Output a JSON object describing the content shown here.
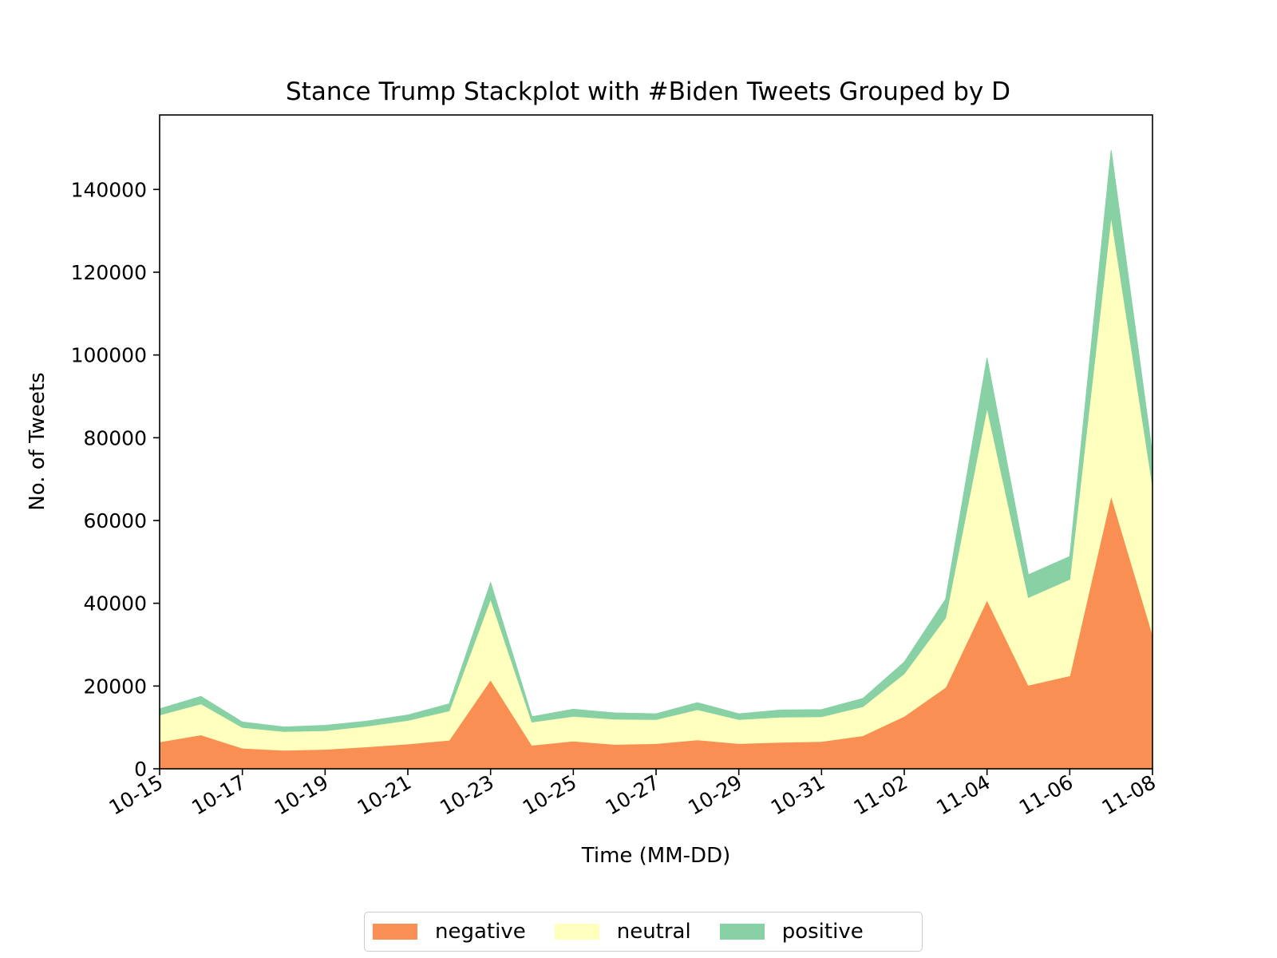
{
  "chart_data": {
    "type": "area",
    "stacked": true,
    "title": "Stance Trump Stackplot with #Biden Tweets Grouped by D",
    "xlabel": "Time (MM-DD)",
    "ylabel": "No. of Tweets",
    "x": [
      "10-15",
      "10-16",
      "10-17",
      "10-18",
      "10-19",
      "10-20",
      "10-21",
      "10-22",
      "10-23",
      "10-24",
      "10-25",
      "10-26",
      "10-27",
      "10-28",
      "10-29",
      "10-30",
      "10-31",
      "11-01",
      "11-02",
      "11-03",
      "11-04",
      "11-05",
      "11-06",
      "11-07",
      "11-08"
    ],
    "xticks": [
      "10-15",
      "10-17",
      "10-19",
      "10-21",
      "10-23",
      "10-25",
      "10-27",
      "10-29",
      "10-31",
      "11-02",
      "11-04",
      "11-06",
      "11-08"
    ],
    "yticks": [
      0,
      20000,
      40000,
      60000,
      80000,
      100000,
      120000,
      140000
    ],
    "ylim": [
      0,
      158000
    ],
    "grid": false,
    "legend_position": "bottom-center",
    "series": [
      {
        "name": "negative",
        "color": "#f98f52",
        "values": [
          6500,
          8200,
          5000,
          4500,
          4700,
          5300,
          6000,
          6900,
          21500,
          5700,
          6700,
          5900,
          6100,
          7000,
          6100,
          6400,
          6600,
          8000,
          12700,
          19700,
          40800,
          20200,
          22500,
          66000,
          32500
        ]
      },
      {
        "name": "neutral",
        "color": "#ffffbe",
        "values": [
          6500,
          7500,
          5000,
          4500,
          4500,
          5000,
          5700,
          7100,
          19500,
          5600,
          6000,
          6100,
          5800,
          7300,
          5800,
          6100,
          6000,
          7000,
          10300,
          16800,
          46500,
          21200,
          23300,
          67500,
          36000
        ]
      },
      {
        "name": "positive",
        "color": "#88d1a4",
        "values": [
          1500,
          1800,
          1300,
          1100,
          1300,
          1200,
          1300,
          1700,
          4000,
          1300,
          1700,
          1500,
          1400,
          1700,
          1400,
          1700,
          1700,
          2000,
          2800,
          4500,
          12000,
          5500,
          5500,
          16000,
          7500
        ]
      }
    ]
  }
}
